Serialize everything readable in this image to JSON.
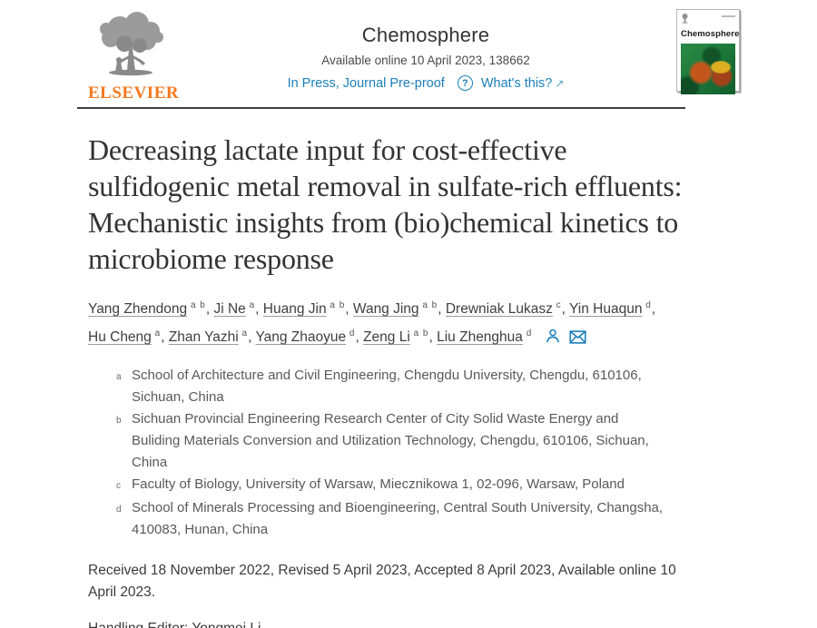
{
  "header": {
    "publisher": "ELSEVIER",
    "journal_title": "Chemosphere",
    "availability": "Available online 10 April 2023, 138662",
    "status_link": "In Press, Journal Pre-proof",
    "help_glyph": "?",
    "whats_this": "What's this?",
    "whats_this_arrow": "↗",
    "cover_title": "Chemosphere"
  },
  "article": {
    "title": "Decreasing lactate input for cost-effective sulfidogenic metal removal in sulfate-rich effluents: Mechanistic insights from (bio)chemical kinetics to microbiome response",
    "authors": [
      {
        "name": "Yang Zhendong",
        "sup": "a b"
      },
      {
        "name": "Ji Ne",
        "sup": "a"
      },
      {
        "name": "Huang Jin",
        "sup": "a b"
      },
      {
        "name": "Wang Jing",
        "sup": "a b"
      },
      {
        "name": "Drewniak Lukasz",
        "sup": "c"
      },
      {
        "name": "Yin Huaqun",
        "sup": "d"
      },
      {
        "name": "Hu Cheng",
        "sup": "a"
      },
      {
        "name": "Zhan Yazhi",
        "sup": "a"
      },
      {
        "name": "Yang Zhaoyue",
        "sup": "d"
      },
      {
        "name": "Zeng Li",
        "sup": "a b"
      },
      {
        "name": "Liu Zhenghua",
        "sup": "d"
      }
    ],
    "affiliations": [
      {
        "label": "a",
        "text": "School of Architecture and Civil Engineering, Chengdu University, Chengdu, 610106, Sichuan, China"
      },
      {
        "label": "b",
        "text": "Sichuan Provincial Engineering Research Center of City Solid Waste Energy and Buliding Materials Conversion and Utilization Technology, Chengdu, 610106, Sichuan, China"
      },
      {
        "label": "c",
        "text": "Faculty of Biology, University of Warsaw, Miecznikowa 1, 02-096, Warsaw, Poland"
      },
      {
        "label": "d",
        "text": "School of Minerals Processing and Bioengineering, Central South University, Changsha, 410083, Hunan, China"
      }
    ],
    "dates": "Received 18 November 2022, Revised 5 April 2023, Accepted 8 April 2023, Available online 10 April 2023.",
    "handling_editor": "Handling Editor: Yongmei Li"
  },
  "icons": {
    "publisher_logo": "elsevier-tree-icon",
    "help": "question-circle-icon",
    "external_link": "arrow-up-right-icon",
    "author_profile": "person-icon",
    "correspondence": "envelope-icon"
  },
  "colors": {
    "link_blue": "#1b7fb9",
    "elsevier_orange": "#f47920",
    "title_text": "#333333",
    "body_text": "#595959",
    "divider": "#3d3d3d",
    "cover_green": "#1e7a3c",
    "cover_orange": "#cd541a"
  }
}
